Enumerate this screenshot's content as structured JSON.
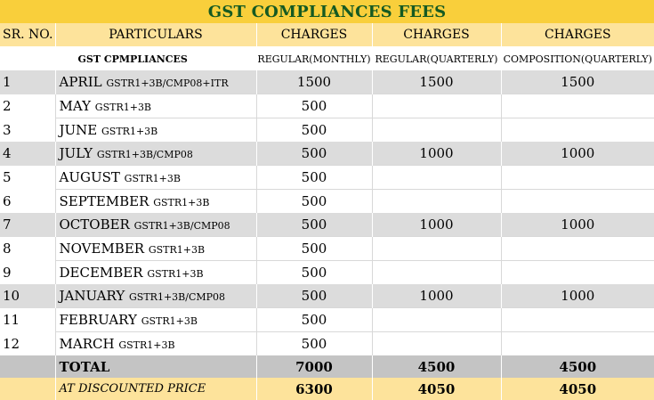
{
  "title": "GST COMPLIANCES FEES",
  "headers": {
    "sr": "SR. NO.",
    "particulars": "PARTICULARS",
    "charges1": "CHARGES",
    "charges2": "CHARGES",
    "charges3": "CHARGES"
  },
  "subheaders": {
    "particulars": "GST CPMPLIANCES",
    "col1": "REGULAR(MONTHLY)",
    "col2": "REGULAR(QUARTERLY)",
    "col3": "COMPOSITION(QUARTERLY)"
  },
  "rows": [
    {
      "sr": "1",
      "month": "APRIL",
      "forms": "GSTR1+3B/CMP08+ITR",
      "monthly": "1500",
      "quarterly": "1500",
      "composition": "1500"
    },
    {
      "sr": "2",
      "month": "MAY",
      "forms": "GSTR1+3B",
      "monthly": "500",
      "quarterly": "",
      "composition": ""
    },
    {
      "sr": "3",
      "month": "JUNE",
      "forms": "GSTR1+3B",
      "monthly": "500",
      "quarterly": "",
      "composition": ""
    },
    {
      "sr": "4",
      "month": "JULY",
      "forms": "GSTR1+3B/CMP08",
      "monthly": "500",
      "quarterly": "1000",
      "composition": "1000"
    },
    {
      "sr": "5",
      "month": "AUGUST",
      "forms": "GSTR1+3B",
      "monthly": "500",
      "quarterly": "",
      "composition": ""
    },
    {
      "sr": "6",
      "month": "SEPTEMBER",
      "forms": "GSTR1+3B",
      "monthly": "500",
      "quarterly": "",
      "composition": ""
    },
    {
      "sr": "7",
      "month": "OCTOBER",
      "forms": "GSTR1+3B/CMP08",
      "monthly": "500",
      "quarterly": "1000",
      "composition": "1000"
    },
    {
      "sr": "8",
      "month": "NOVEMBER",
      "forms": "GSTR1+3B",
      "monthly": "500",
      "quarterly": "",
      "composition": ""
    },
    {
      "sr": "9",
      "month": "DECEMBER",
      "forms": "GSTR1+3B",
      "monthly": "500",
      "quarterly": "",
      "composition": ""
    },
    {
      "sr": "10",
      "month": "JANUARY",
      "forms": "GSTR1+3B/CMP08",
      "monthly": "500",
      "quarterly": "1000",
      "composition": "1000"
    },
    {
      "sr": "11",
      "month": "FEBRUARY",
      "forms": "GSTR1+3B",
      "monthly": "500",
      "quarterly": "",
      "composition": ""
    },
    {
      "sr": "12",
      "month": "MARCH",
      "forms": "GSTR1+3B",
      "monthly": "500",
      "quarterly": "",
      "composition": ""
    }
  ],
  "total": {
    "label": "TOTAL",
    "monthly": "7000",
    "quarterly": "4500",
    "composition": "4500"
  },
  "discount": {
    "label": "AT DISCOUNTED PRICE",
    "monthly": "6300",
    "quarterly": "4050",
    "composition": "4050"
  }
}
